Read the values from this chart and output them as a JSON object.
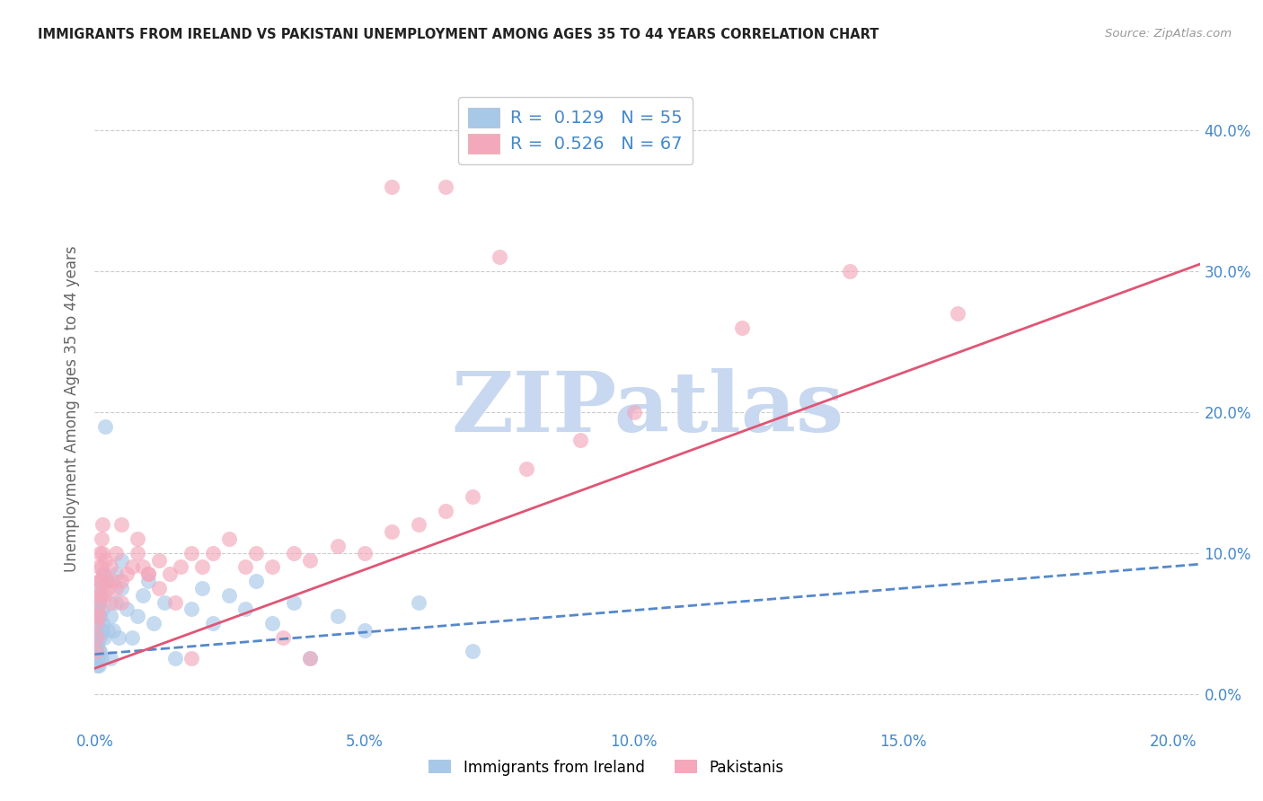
{
  "title": "IMMIGRANTS FROM IRELAND VS PAKISTANI UNEMPLOYMENT AMONG AGES 35 TO 44 YEARS CORRELATION CHART",
  "source": "Source: ZipAtlas.com",
  "ylabel": "Unemployment Among Ages 35 to 44 years",
  "xlim": [
    0.0,
    0.205
  ],
  "ylim": [
    -0.025,
    0.43
  ],
  "xticks": [
    0.0,
    0.05,
    0.1,
    0.15,
    0.2
  ],
  "yticks": [
    0.0,
    0.1,
    0.2,
    0.3,
    0.4
  ],
  "grid_color": "#cccccc",
  "bg_color": "#ffffff",
  "ireland_dot_color": "#a8c8e8",
  "pakistan_dot_color": "#f4a8bc",
  "ireland_line_color": "#5588cc",
  "pakistan_line_color": "#e05575",
  "R_ireland": 0.129,
  "N_ireland": 55,
  "R_pakistan": 0.526,
  "N_pakistan": 67,
  "watermark": "ZIPatlas",
  "watermark_color": "#c8d8f0",
  "title_color": "#222222",
  "ylabel_color": "#666666",
  "tick_color": "#4488cc",
  "source_color": "#999999",
  "legend_color": "#4488cc",
  "ireland_x": [
    0.0002,
    0.0003,
    0.0004,
    0.0005,
    0.0005,
    0.0006,
    0.0006,
    0.0007,
    0.0007,
    0.0008,
    0.0008,
    0.0009,
    0.0009,
    0.001,
    0.001,
    0.0011,
    0.0012,
    0.0012,
    0.0013,
    0.0014,
    0.0015,
    0.0016,
    0.0018,
    0.002,
    0.0022,
    0.0025,
    0.003,
    0.003,
    0.0035,
    0.004,
    0.004,
    0.0045,
    0.005,
    0.005,
    0.006,
    0.007,
    0.008,
    0.009,
    0.01,
    0.011,
    0.013,
    0.015,
    0.018,
    0.02,
    0.022,
    0.025,
    0.028,
    0.03,
    0.033,
    0.037,
    0.04,
    0.045,
    0.05,
    0.06,
    0.07
  ],
  "ireland_y": [
    0.03,
    0.04,
    0.02,
    0.035,
    0.06,
    0.025,
    0.05,
    0.03,
    0.065,
    0.02,
    0.055,
    0.04,
    0.075,
    0.03,
    0.055,
    0.08,
    0.045,
    0.07,
    0.025,
    0.05,
    0.06,
    0.085,
    0.04,
    0.19,
    0.08,
    0.045,
    0.025,
    0.055,
    0.045,
    0.065,
    0.085,
    0.04,
    0.075,
    0.095,
    0.06,
    0.04,
    0.055,
    0.07,
    0.08,
    0.05,
    0.065,
    0.025,
    0.06,
    0.075,
    0.05,
    0.07,
    0.06,
    0.08,
    0.05,
    0.065,
    0.025,
    0.055,
    0.045,
    0.065,
    0.03
  ],
  "pakistan_x": [
    0.0002,
    0.0003,
    0.0004,
    0.0005,
    0.0006,
    0.0007,
    0.0007,
    0.0008,
    0.0009,
    0.001,
    0.001,
    0.0012,
    0.0013,
    0.0014,
    0.0015,
    0.0016,
    0.0018,
    0.002,
    0.0022,
    0.0025,
    0.003,
    0.003,
    0.0035,
    0.004,
    0.004,
    0.005,
    0.005,
    0.006,
    0.007,
    0.008,
    0.009,
    0.01,
    0.012,
    0.014,
    0.016,
    0.018,
    0.02,
    0.022,
    0.025,
    0.028,
    0.03,
    0.033,
    0.037,
    0.04,
    0.045,
    0.05,
    0.055,
    0.06,
    0.065,
    0.07,
    0.08,
    0.09,
    0.1,
    0.12,
    0.14,
    0.16,
    0.055,
    0.065,
    0.075,
    0.035,
    0.04,
    0.005,
    0.008,
    0.01,
    0.012,
    0.015,
    0.018
  ],
  "pakistan_y": [
    0.03,
    0.05,
    0.04,
    0.07,
    0.06,
    0.08,
    0.055,
    0.09,
    0.07,
    0.1,
    0.08,
    0.11,
    0.09,
    0.12,
    0.1,
    0.085,
    0.07,
    0.095,
    0.08,
    0.075,
    0.065,
    0.09,
    0.08,
    0.1,
    0.075,
    0.065,
    0.08,
    0.085,
    0.09,
    0.1,
    0.09,
    0.085,
    0.095,
    0.085,
    0.09,
    0.1,
    0.09,
    0.1,
    0.11,
    0.09,
    0.1,
    0.09,
    0.1,
    0.095,
    0.105,
    0.1,
    0.115,
    0.12,
    0.13,
    0.14,
    0.16,
    0.18,
    0.2,
    0.26,
    0.3,
    0.27,
    0.36,
    0.36,
    0.31,
    0.04,
    0.025,
    0.12,
    0.11,
    0.085,
    0.075,
    0.065,
    0.025
  ]
}
